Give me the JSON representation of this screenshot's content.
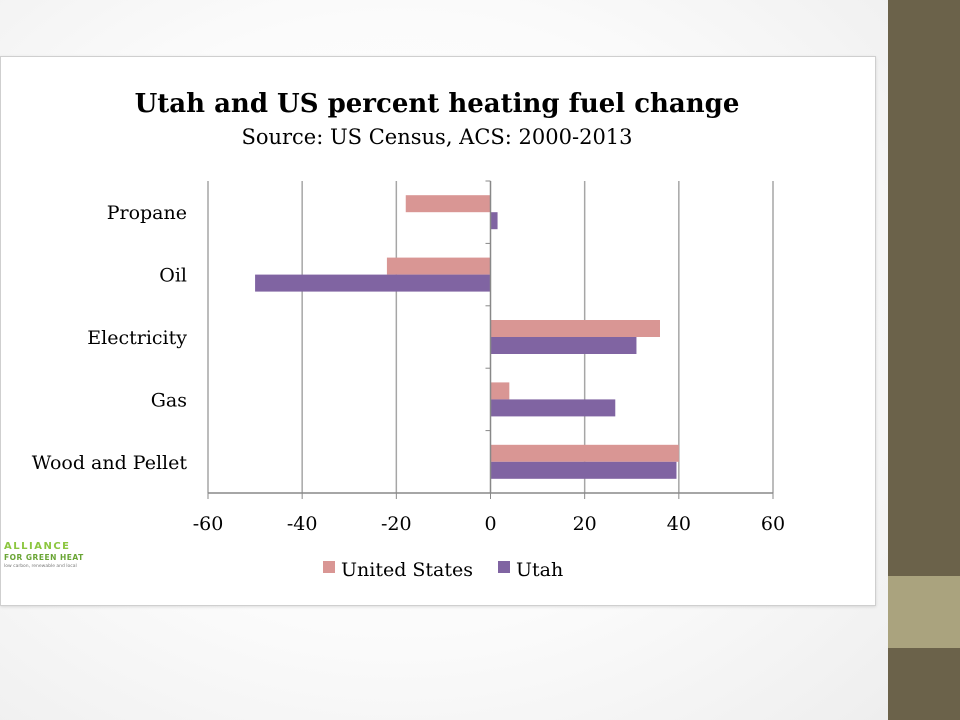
{
  "slide": {
    "colors": {
      "sidebar_dark": "#6b624a",
      "sidebar_light": "#aaa37e"
    }
  },
  "logo": {
    "line1": "ALLIANCE",
    "line2": "FOR GREEN HEAT",
    "line3": "low carbon, renewable and local"
  },
  "chart_data": {
    "type": "bar",
    "orientation": "horizontal",
    "title": "Utah and US percent heating fuel change",
    "subtitle": "Source: US Census, ACS: 2000-2013",
    "categories": [
      "Propane",
      "Oil",
      "Electricity",
      "Gas",
      "Wood and Pellet"
    ],
    "series": [
      {
        "name": "United States",
        "color": "#d99694",
        "values": [
          -18,
          -22,
          36,
          4,
          40
        ]
      },
      {
        "name": "Utah",
        "color": "#8064a2",
        "values": [
          1.5,
          -50,
          31,
          26.5,
          39.5
        ]
      }
    ],
    "xlim": [
      -60,
      60
    ],
    "xticks": [
      -60,
      -40,
      -20,
      0,
      20,
      40,
      60
    ],
    "xtick_labels": [
      "-60",
      "-40",
      "-20",
      "0",
      "20",
      "40",
      "60"
    ],
    "grid": true,
    "legend_position": "bottom"
  }
}
